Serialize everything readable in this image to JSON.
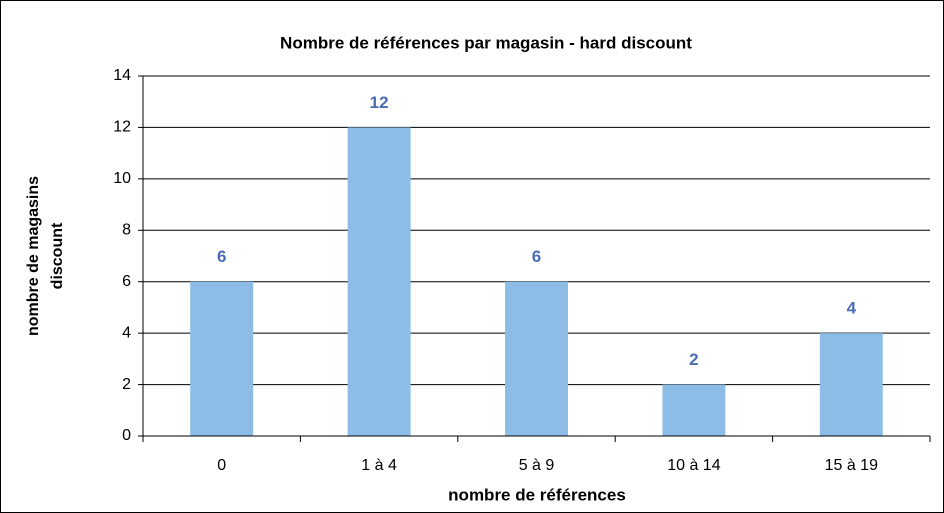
{
  "chart_data": {
    "type": "bar",
    "title": "Nombre de références par magasin - hard discount",
    "x_label": "nombre de références",
    "y_label": [
      "nombre de magasins",
      "discount"
    ],
    "categories": [
      "0",
      "1 à 4",
      "5 à 9",
      "10 à 14",
      "15 à 19"
    ],
    "values": [
      6,
      12,
      6,
      2,
      4
    ],
    "color": "#8dbde6",
    "value_label_color": "#4a6eb4",
    "ylim": [
      0,
      14
    ],
    "yticks": [
      0,
      2,
      4,
      6,
      8,
      10,
      12,
      14
    ],
    "grid": true
  }
}
